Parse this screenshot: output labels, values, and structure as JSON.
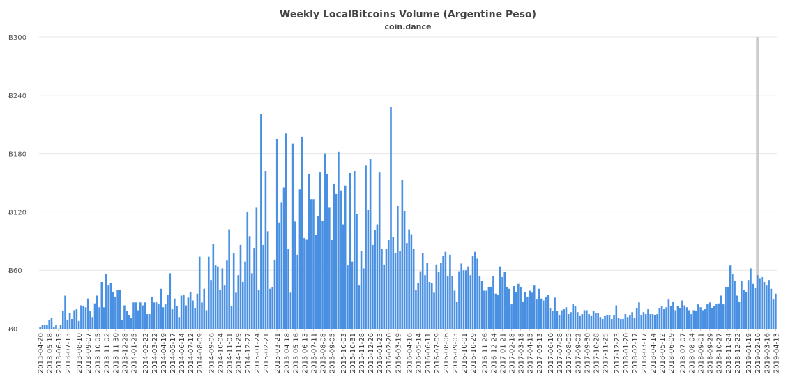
{
  "chart_data": {
    "type": "bar",
    "title": "Weekly LocalBitcoins Volume (Argentine Peso)",
    "subtitle": "coin.dance",
    "xlabel": "",
    "ylabel": "",
    "ylim": [
      0,
      300
    ],
    "y_ticks": [
      "Ƀ0",
      "Ƀ60",
      "Ƀ120",
      "Ƀ180",
      "Ƀ240",
      "Ƀ300"
    ],
    "grid": true,
    "legend": "none",
    "colors": {
      "bar": "#4a90e2",
      "grid": "#e6e6e6",
      "highlight": "#cccccc"
    },
    "highlight_category": "2019-02-16",
    "x_tick_labels": [
      "2013-04-20",
      "2013-05-18",
      "2013-06-15",
      "2013-07-13",
      "2013-08-10",
      "2013-09-07",
      "2013-10-05",
      "2013-11-02",
      "2013-11-30",
      "2013-12-28",
      "2014-01-25",
      "2014-02-22",
      "2014-03-22",
      "2014-04-19",
      "2014-05-17",
      "2014-06-14",
      "2014-07-12",
      "2014-08-09",
      "2014-09-06",
      "2014-10-04",
      "2014-11-01",
      "2014-11-29",
      "2014-12-27",
      "2015-01-24",
      "2015-02-21",
      "2015-03-21",
      "2015-04-18",
      "2015-05-16",
      "2015-06-13",
      "2015-07-11",
      "2015-08-08",
      "2015-09-05",
      "2015-10-03",
      "2015-10-31",
      "2015-11-28",
      "2015-12-26",
      "2016-01-23",
      "2016-02-20",
      "2016-03-19",
      "2016-04-16",
      "2016-05-14",
      "2016-06-11",
      "2016-07-09",
      "2016-08-06",
      "2016-09-03",
      "2016-10-01",
      "2016-10-29",
      "2016-11-26",
      "2016-12-24",
      "2017-01-21",
      "2017-02-18",
      "2017-03-18",
      "2017-04-15",
      "2017-05-13",
      "2017-06-10",
      "2017-07-08",
      "2017-08-05",
      "2017-09-02",
      "2017-09-30",
      "2017-10-28",
      "2017-11-25",
      "2017-12-23",
      "2018-01-20",
      "2018-02-17",
      "2018-03-17",
      "2018-04-14",
      "2018-05-12",
      "2018-06-09",
      "2018-07-07",
      "2018-08-04",
      "2018-09-01",
      "2018-09-29",
      "2018-10-27",
      "2018-11-24",
      "2018-12-22",
      "2019-01-19",
      "2019-02-16",
      "2019-03-16",
      "2019-04-13"
    ],
    "values": [
      2,
      4,
      4,
      4,
      9,
      11,
      2,
      4,
      0,
      4,
      18,
      34,
      9,
      16,
      10,
      19,
      20,
      8,
      24,
      23,
      22,
      31,
      18,
      12,
      26,
      34,
      22,
      48,
      22,
      56,
      45,
      47,
      38,
      33,
      40,
      40,
      9,
      24,
      18,
      14,
      11,
      27,
      27,
      19,
      27,
      24,
      27,
      15,
      15,
      33,
      27,
      27,
      25,
      41,
      22,
      25,
      35,
      57,
      20,
      31,
      23,
      12,
      34,
      35,
      24,
      32,
      38,
      29,
      21,
      36,
      74,
      27,
      41,
      19,
      74,
      50,
      87,
      65,
      64,
      40,
      62,
      45,
      70,
      102,
      23,
      78,
      37,
      55,
      86,
      48,
      69,
      120,
      95,
      57,
      83,
      125,
      40,
      221,
      86,
      162,
      100,
      41,
      43,
      71,
      195,
      109,
      130,
      145,
      201,
      82,
      37,
      190,
      110,
      76,
      143,
      197,
      93,
      92,
      159,
      133,
      133,
      96,
      116,
      161,
      111,
      180,
      159,
      125,
      91,
      149,
      139,
      182,
      142,
      107,
      147,
      65,
      160,
      69,
      162,
      118,
      45,
      80,
      62,
      168,
      122,
      174,
      86,
      101,
      107,
      161,
      82,
      66,
      82,
      91,
      228,
      94,
      78,
      126,
      80,
      153,
      121,
      88,
      102,
      97,
      82,
      40,
      47,
      59,
      78,
      55,
      68,
      48,
      47,
      37,
      66,
      58,
      68,
      75,
      79,
      54,
      76,
      54,
      39,
      28,
      59,
      67,
      60,
      60,
      64,
      55,
      75,
      79,
      72,
      54,
      49,
      39,
      39,
      43,
      43,
      54,
      36,
      35,
      64,
      53,
      58,
      43,
      41,
      25,
      44,
      38,
      46,
      43,
      28,
      38,
      33,
      39,
      37,
      45,
      30,
      41,
      31,
      29,
      33,
      35,
      21,
      18,
      32,
      18,
      14,
      19,
      20,
      22,
      15,
      17,
      25,
      23,
      17,
      13,
      15,
      19,
      19,
      15,
      13,
      18,
      16,
      16,
      12,
      10,
      13,
      14,
      14,
      10,
      14,
      24,
      11,
      10,
      10,
      15,
      12,
      14,
      17,
      11,
      21,
      27,
      14,
      17,
      15,
      20,
      15,
      15,
      14,
      15,
      21,
      23,
      20,
      22,
      30,
      23,
      28,
      19,
      23,
      21,
      29,
      24,
      22,
      19,
      15,
      19,
      18,
      25,
      22,
      19,
      20,
      25,
      27,
      21,
      23,
      25,
      26,
      34,
      25,
      43,
      43,
      65,
      56,
      49,
      34,
      28,
      49,
      40,
      38,
      50,
      62,
      46,
      42,
      55,
      52,
      53,
      48,
      45,
      50,
      41,
      30,
      36
    ]
  }
}
